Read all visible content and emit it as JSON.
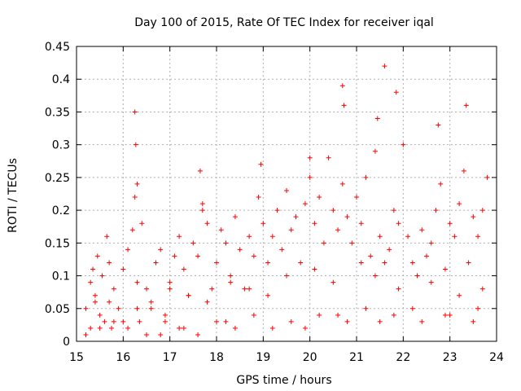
{
  "chart_data": {
    "type": "scatter",
    "title": "Day 100 of 2015, Rate Of TEC Index for receiver iqal",
    "xlabel": "GPS time / hours",
    "ylabel": "ROTI / TECUs",
    "xlim": [
      15,
      24
    ],
    "ylim": [
      0,
      0.45
    ],
    "x_ticks": [
      "15",
      "16",
      "17",
      "18",
      "19",
      "20",
      "21",
      "22",
      "23",
      "24"
    ],
    "y_ticks": [
      "0",
      "0.05",
      "0.1",
      "0.15",
      "0.2",
      "0.25",
      "0.3",
      "0.35",
      "0.4",
      "0.45"
    ],
    "grid": true,
    "marker": "plus",
    "series": [
      {
        "color": "#ff0000",
        "x": [
          15.2,
          15.3,
          15.35,
          15.4,
          15.45,
          15.5,
          15.55,
          15.6,
          15.65,
          15.7,
          15.75,
          15.8,
          15.9,
          16.0,
          16.1,
          16.2,
          16.25,
          16.3,
          16.35,
          16.4,
          16.5,
          16.6,
          16.7,
          16.8,
          16.9,
          17.0,
          17.1,
          17.2,
          17.3,
          17.4,
          17.5,
          17.6,
          17.7,
          17.8,
          17.9,
          18.0,
          18.1,
          18.2,
          18.3,
          18.4,
          18.5,
          18.6,
          18.7,
          18.8,
          18.9,
          19.0,
          19.1,
          19.2,
          19.3,
          19.4,
          19.5,
          19.6,
          19.7,
          19.8,
          19.9,
          20.0,
          20.1,
          20.2,
          20.3,
          20.4,
          20.5,
          20.6,
          20.7,
          20.8,
          20.9,
          21.0,
          21.1,
          21.2,
          21.3,
          21.4,
          21.5,
          21.6,
          21.7,
          21.8,
          21.9,
          22.0,
          22.1,
          22.2,
          22.3,
          22.4,
          22.5,
          22.6,
          22.7,
          22.8,
          22.9,
          23.0,
          23.1,
          23.2,
          23.3,
          23.4,
          23.5,
          23.6,
          23.7,
          23.8,
          16.25,
          16.27,
          16.3,
          17.65,
          17.7,
          18.95,
          20.0,
          20.7,
          20.73,
          21.45,
          21.6,
          21.85,
          22.75,
          23.35,
          15.3,
          16.0,
          16.8,
          17.3,
          18.2,
          19.9,
          20.6,
          21.5,
          22.2,
          22.9,
          23.5,
          15.2,
          15.5,
          15.8,
          16.1,
          16.5,
          16.9,
          17.2,
          17.6,
          18.0,
          18.4,
          18.8,
          19.2,
          19.6,
          20.2,
          20.8,
          21.2,
          21.8,
          22.4,
          23.0,
          23.6,
          15.4,
          15.7,
          16.3,
          16.6,
          17.0,
          17.4,
          17.8,
          18.3,
          18.7,
          19.1,
          19.5,
          20.1,
          20.5,
          21.1,
          21.4,
          21.9,
          22.6,
          23.2,
          23.7
        ],
        "y": [
          0.05,
          0.09,
          0.11,
          0.06,
          0.13,
          0.04,
          0.1,
          0.03,
          0.16,
          0.12,
          0.02,
          0.08,
          0.05,
          0.11,
          0.14,
          0.17,
          0.22,
          0.09,
          0.03,
          0.18,
          0.08,
          0.05,
          0.12,
          0.14,
          0.04,
          0.09,
          0.13,
          0.16,
          0.11,
          0.07,
          0.15,
          0.13,
          0.2,
          0.18,
          0.08,
          0.12,
          0.17,
          0.15,
          0.1,
          0.19,
          0.14,
          0.08,
          0.16,
          0.13,
          0.22,
          0.18,
          0.12,
          0.16,
          0.2,
          0.14,
          0.23,
          0.17,
          0.19,
          0.12,
          0.21,
          0.25,
          0.18,
          0.22,
          0.15,
          0.28,
          0.2,
          0.17,
          0.24,
          0.19,
          0.15,
          0.22,
          0.18,
          0.25,
          0.13,
          0.29,
          0.16,
          0.12,
          0.14,
          0.2,
          0.18,
          0.3,
          0.16,
          0.12,
          0.1,
          0.17,
          0.13,
          0.15,
          0.2,
          0.24,
          0.11,
          0.18,
          0.16,
          0.21,
          0.26,
          0.12,
          0.19,
          0.16,
          0.2,
          0.25,
          0.35,
          0.3,
          0.24,
          0.26,
          0.21,
          0.27,
          0.28,
          0.39,
          0.36,
          0.34,
          0.42,
          0.38,
          0.33,
          0.36,
          0.02,
          0.03,
          0.01,
          0.02,
          0.03,
          0.02,
          0.04,
          0.03,
          0.05,
          0.04,
          0.03,
          0.01,
          0.02,
          0.03,
          0.02,
          0.01,
          0.03,
          0.02,
          0.01,
          0.03,
          0.02,
          0.04,
          0.02,
          0.03,
          0.04,
          0.03,
          0.05,
          0.04,
          0.03,
          0.04,
          0.05,
          0.07,
          0.06,
          0.05,
          0.06,
          0.08,
          0.07,
          0.06,
          0.09,
          0.08,
          0.07,
          0.1,
          0.11,
          0.09,
          0.12,
          0.1,
          0.08,
          0.09,
          0.07,
          0.08
        ]
      }
    ]
  }
}
